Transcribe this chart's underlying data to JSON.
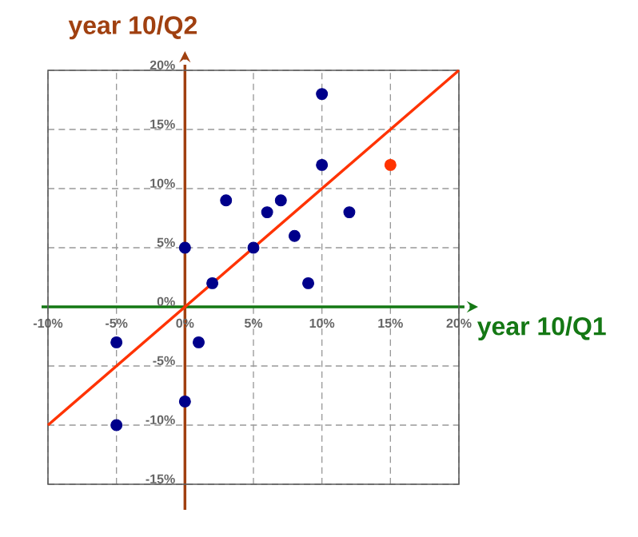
{
  "chart_data": {
    "type": "scatter",
    "xlabel": "year 10/Q1",
    "ylabel": "year 10/Q2",
    "xlim": [
      -10,
      20
    ],
    "ylim": [
      -15,
      20
    ],
    "xticks": [
      {
        "value": -10,
        "label": "-10%"
      },
      {
        "value": -5,
        "label": "-5%"
      },
      {
        "value": 0,
        "label": "0%"
      },
      {
        "value": 5,
        "label": "5%"
      },
      {
        "value": 10,
        "label": "10%"
      },
      {
        "value": 15,
        "label": "15%"
      },
      {
        "value": 20,
        "label": "20%"
      }
    ],
    "yticks": [
      {
        "value": -15,
        "label": "-15%"
      },
      {
        "value": -10,
        "label": "-10%"
      },
      {
        "value": -5,
        "label": "-5%"
      },
      {
        "value": 0,
        "label": "0%"
      },
      {
        "value": 5,
        "label": "5%"
      },
      {
        "value": 10,
        "label": "10%"
      },
      {
        "value": 15,
        "label": "15%"
      },
      {
        "value": 20,
        "label": "20%"
      }
    ],
    "grid": true,
    "series": [
      {
        "color": "#00008b",
        "x": [
          -5,
          -5,
          0,
          0,
          1,
          2,
          3,
          5,
          6,
          7,
          8,
          9,
          10,
          10,
          12
        ],
        "values": [
          -3,
          -10,
          5,
          -8,
          -3,
          2,
          9,
          5,
          8,
          9,
          6,
          2,
          18,
          12,
          8
        ],
        "marker": "circle"
      },
      {
        "color": "#ff3300",
        "x": [
          15
        ],
        "values": [
          12
        ],
        "marker": "circle"
      },
      {
        "type": "line",
        "color": "#ff3300",
        "x": [
          -10,
          20
        ],
        "values": [
          -10,
          20
        ],
        "marker": "none"
      }
    ]
  }
}
